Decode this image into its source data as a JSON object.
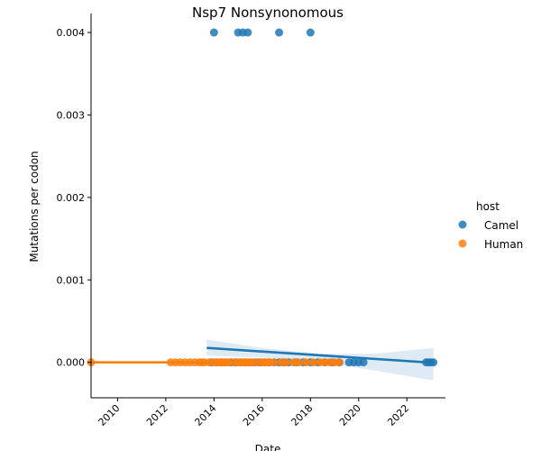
{
  "chart_data": {
    "type": "scatter",
    "title": "Nsp7 Nonsynonomous",
    "xlabel": "Date",
    "ylabel": "Mutations per codon",
    "xlim": [
      2008.9,
      2023.6
    ],
    "ylim": [
      -0.00043,
      0.00423
    ],
    "xticks": [
      2010,
      2012,
      2014,
      2016,
      2018,
      2020,
      2022
    ],
    "yticks": [
      0.0,
      0.001,
      0.002,
      0.003,
      0.004
    ],
    "ytick_labels": [
      "0.000",
      "0.001",
      "0.002",
      "0.003",
      "0.004"
    ],
    "grid": false,
    "legend": {
      "title": "host",
      "position": "right"
    },
    "series": [
      {
        "name": "Camel",
        "color": "#1f77b4",
        "x": [
          2013.9,
          2014.1,
          2014.3,
          2014.5,
          2014.7,
          2014.9,
          2015.1,
          2015.3,
          2015.5,
          2015.7,
          2015.9,
          2016.1,
          2016.3,
          2016.5,
          2016.7,
          2016.9,
          2017.1,
          2017.4,
          2017.7,
          2018.0,
          2018.3,
          2018.6,
          2018.9,
          2019.2,
          2019.6,
          2019.8,
          2020.0,
          2020.2,
          2022.8,
          2022.9,
          2023.0,
          2023.1,
          2014.0,
          2015.0,
          2015.2,
          2015.4,
          2016.7,
          2018.0
        ],
        "y": [
          0,
          0,
          0,
          0,
          0,
          0,
          0,
          0,
          0,
          0,
          0,
          0,
          0,
          0,
          0,
          0,
          0,
          0,
          0,
          0,
          0,
          0,
          0,
          0,
          0,
          0,
          0,
          0,
          0,
          0,
          0,
          0,
          0.004,
          0.004,
          0.004,
          0.004,
          0.004,
          0.004
        ]
      },
      {
        "name": "Human",
        "color": "#ff7f0e",
        "x": [
          2008.9,
          2012.2,
          2012.4,
          2012.6,
          2012.8,
          2013.0,
          2013.2,
          2013.4,
          2013.5,
          2013.6,
          2013.8,
          2014.0,
          2014.1,
          2014.2,
          2014.3,
          2014.4,
          2014.5,
          2014.6,
          2014.8,
          2015.0,
          2015.1,
          2015.2,
          2015.3,
          2015.4,
          2015.5,
          2015.6,
          2015.8,
          2016.0,
          2016.1,
          2016.2,
          2016.3,
          2016.5,
          2016.8,
          2017.0,
          2017.3,
          2017.5,
          2017.8,
          2018.1,
          2018.4,
          2018.6,
          2018.8,
          2019.0,
          2019.2
        ],
        "y": [
          0,
          0,
          0,
          0,
          0,
          0,
          0,
          0,
          0,
          0,
          0,
          0,
          0,
          0,
          0,
          0,
          0,
          0,
          0,
          0,
          0,
          0,
          0,
          0,
          0,
          0,
          0,
          0,
          0,
          0,
          0,
          0,
          0,
          0,
          0,
          0,
          0,
          0,
          0,
          0,
          0,
          0,
          0
        ]
      }
    ],
    "regression": [
      {
        "series": "Camel",
        "color": "#1f77b4",
        "x": [
          2013.7,
          2023.1
        ],
        "y": [
          0.000175,
          -5e-06
        ],
        "ci": {
          "x": [
            2013.7,
            2016.0,
            2018.4,
            2020.7,
            2023.1
          ],
          "upper": [
            0.000275,
            0.000175,
            0.000105,
            0.000105,
            0.000175
          ],
          "lower": [
            8e-05,
            6e-05,
            0.0,
            -0.0001,
            -0.00022
          ]
        }
      },
      {
        "series": "Human",
        "color": "#ff7f0e",
        "x": [
          2008.9,
          2019.2
        ],
        "y": [
          0.0,
          0.0
        ]
      }
    ]
  }
}
